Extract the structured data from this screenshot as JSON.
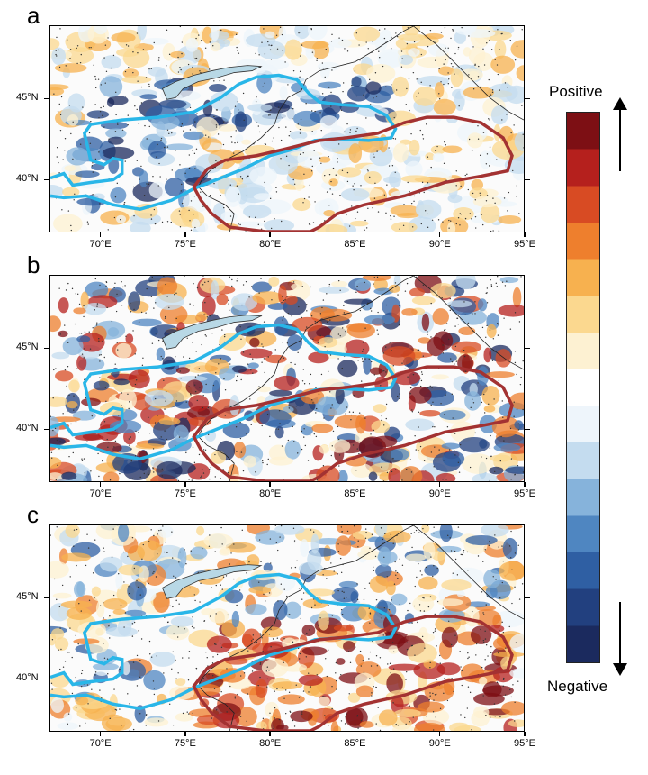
{
  "panels": [
    {
      "label": "a"
    },
    {
      "label": "b"
    },
    {
      "label": "c"
    }
  ],
  "axes": {
    "lat_ticks": [
      "45°N",
      "40°N"
    ],
    "lon_ticks": [
      "70°E",
      "75°E",
      "80°E",
      "85°E",
      "90°E",
      "95°E"
    ]
  },
  "legend": {
    "positive_label": "Positive",
    "negative_label": "Negative",
    "colors": [
      "#1b2a5e",
      "#22407f",
      "#2f5fa3",
      "#4f86c1",
      "#86b3db",
      "#c4dcef",
      "#eef5fb",
      "#ffffff",
      "#fdf1d2",
      "#fbd88f",
      "#f7b14f",
      "#ee7f2d",
      "#d84b23",
      "#b5201d",
      "#7d0f14"
    ]
  },
  "outline_colors": {
    "cyan": "#29b6e8",
    "dark_red": "#a33232",
    "lake_fill": "#b8d8e6"
  }
}
